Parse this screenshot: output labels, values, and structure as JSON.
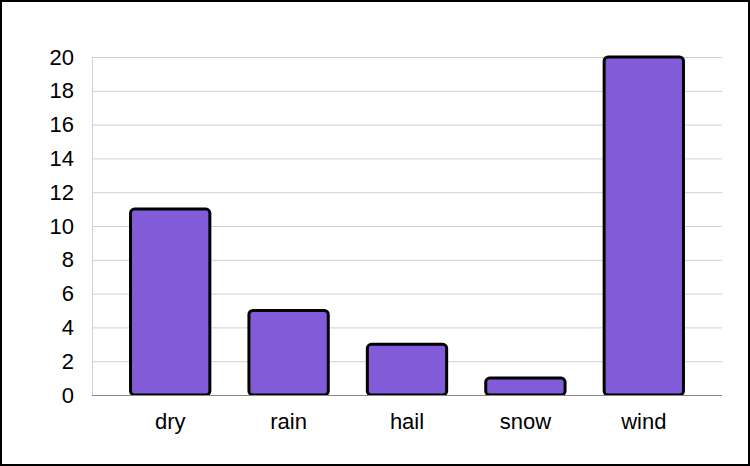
{
  "chart_data": {
    "type": "bar",
    "categories": [
      "dry",
      "rain",
      "hail",
      "snow",
      "wind"
    ],
    "values": [
      11,
      5,
      3,
      1,
      20
    ],
    "color": "#825bd8",
    "ylim": [
      0,
      20
    ],
    "yticks": [
      0,
      2,
      4,
      6,
      8,
      10,
      12,
      14,
      16,
      18,
      20
    ],
    "grid": true
  }
}
